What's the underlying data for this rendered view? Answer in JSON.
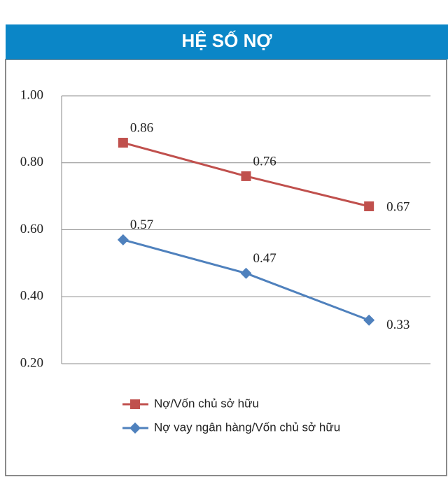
{
  "chart_data": {
    "type": "line",
    "title": "HỆ SỐ NỢ",
    "categories": [
      null,
      null,
      null
    ],
    "series": [
      {
        "name": "Nợ/Vốn chủ sở hữu",
        "color": "#c0504d",
        "marker": "square",
        "values": [
          0.86,
          0.76,
          0.67
        ]
      },
      {
        "name": "Nợ vay ngân hàng/Vốn chủ sở hữu",
        "color": "#4f81bd",
        "marker": "diamond",
        "values": [
          0.57,
          0.47,
          0.33
        ]
      }
    ],
    "ylim": [
      0.2,
      1.0
    ],
    "yticks": [
      {
        "value": 0.2,
        "label": "0.20"
      },
      {
        "value": 0.4,
        "label": "0.40"
      },
      {
        "value": 0.6,
        "label": "0.60"
      },
      {
        "value": 0.8,
        "label": "0.80"
      },
      {
        "value": 1.0,
        "label": "1.00"
      }
    ],
    "grid": true,
    "legend": "bottom"
  }
}
